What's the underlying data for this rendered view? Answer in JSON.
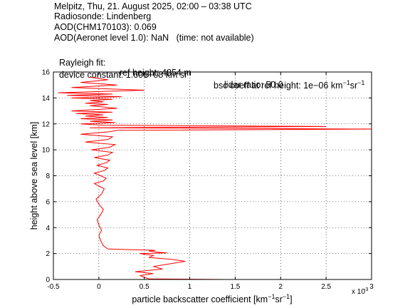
{
  "header": {
    "line1": "Melpitz, Thu, 21. August 2025, 02:00 – 03:38 UTC",
    "line2": "Radiosonde: Lindenberg",
    "line3": "AOD(CHM170103): 0.069",
    "line4": "AOD(Aeronet level 1.0): NaN   (time: not available)",
    "rayleigh_label": "Rayleigh fit:",
    "ref_height": "ref height: 4854 m",
    "bsc_coeff": "bsc coeff at ref height: 1e−06 km",
    "bsc_units_sup1": "−1",
    "bsc_units_sr": "sr",
    "bsc_units_sup2": "−1",
    "device_constant": "device constant: 1.60e+08 km sr",
    "lidar_ratio": "lidar ratio: 50.0"
  },
  "chart_data": {
    "type": "line",
    "xlabel": "particle backscatter coefficient [km",
    "xlabel_sup1": "−1",
    "xlabel_sr": "sr",
    "xlabel_sup2": "−1",
    "xlabel_end": "]",
    "ylabel": "height above sea level [km]",
    "x_multiplier": "x 10",
    "x_multiplier_exp": "-3",
    "xlim": [
      -0.5,
      3
    ],
    "ylim": [
      0,
      16
    ],
    "xticks": [
      "-0.5",
      "0",
      "0.5",
      "1",
      "1.5",
      "2",
      "2.5",
      "3"
    ],
    "yticks": [
      "0",
      "2",
      "4",
      "6",
      "8",
      "10",
      "12",
      "14",
      "16"
    ],
    "grid": true,
    "line_color": "#ff0000",
    "series": [
      {
        "x": [
          1.4,
          0.55,
          0.45,
          0.6,
          0.4,
          0.7,
          0.6,
          0.95,
          0.8,
          0.55,
          0.6,
          0.45,
          0.75,
          0.65,
          0.55,
          0.62,
          0.1,
          0.05,
          0.02,
          0.0,
          0.03,
          0.0,
          -0.02,
          0.02,
          0.05,
          0.0,
          -0.03,
          0.03,
          0.06,
          0.0,
          -0.05,
          0.05,
          0.08,
          0.02,
          -0.05,
          0.06,
          0.1,
          -0.02,
          0.08,
          0.12,
          -0.05,
          0.1,
          0.15,
          -0.08,
          0.12,
          0.18,
          -0.15,
          0.1,
          0.15,
          -0.2,
          0.12,
          0.2,
          3.0,
          -0.1,
          2.5,
          0.05,
          -0.2,
          0.18,
          -0.1,
          0.15,
          -0.2,
          0.1,
          -0.15,
          0.05,
          -0.25,
          0.15,
          -0.3,
          0.2,
          -0.1,
          0.1,
          -0.15,
          0.05,
          -0.1,
          0.15,
          -0.3,
          0.25,
          -0.35,
          0.15,
          -0.45,
          0.5,
          -0.3,
          0.2,
          -0.2,
          0.1,
          -0.1
        ],
        "y": [
          0.0,
          0.05,
          0.3,
          0.45,
          0.6,
          0.8,
          1.0,
          1.4,
          1.55,
          1.7,
          1.85,
          2.0,
          2.05,
          2.1,
          2.2,
          2.25,
          2.35,
          2.6,
          3.0,
          3.4,
          3.8,
          4.2,
          4.6,
          5.0,
          5.4,
          5.8,
          6.2,
          6.6,
          7.0,
          7.2,
          7.4,
          7.6,
          7.8,
          8.0,
          8.2,
          8.4,
          8.6,
          8.8,
          9.0,
          9.2,
          9.4,
          9.6,
          9.8,
          10.0,
          10.2,
          10.4,
          10.6,
          10.8,
          11.0,
          11.2,
          11.4,
          11.5,
          11.6,
          11.7,
          11.8,
          11.9,
          12.0,
          12.1,
          12.2,
          12.3,
          12.4,
          12.5,
          12.6,
          12.7,
          12.8,
          12.9,
          13.0,
          13.2,
          13.4,
          13.5,
          13.6,
          13.7,
          13.8,
          13.9,
          14.0,
          14.1,
          14.2,
          14.3,
          14.4,
          14.6,
          14.8,
          15.0,
          15.2,
          15.4,
          15.6
        ]
      }
    ]
  }
}
